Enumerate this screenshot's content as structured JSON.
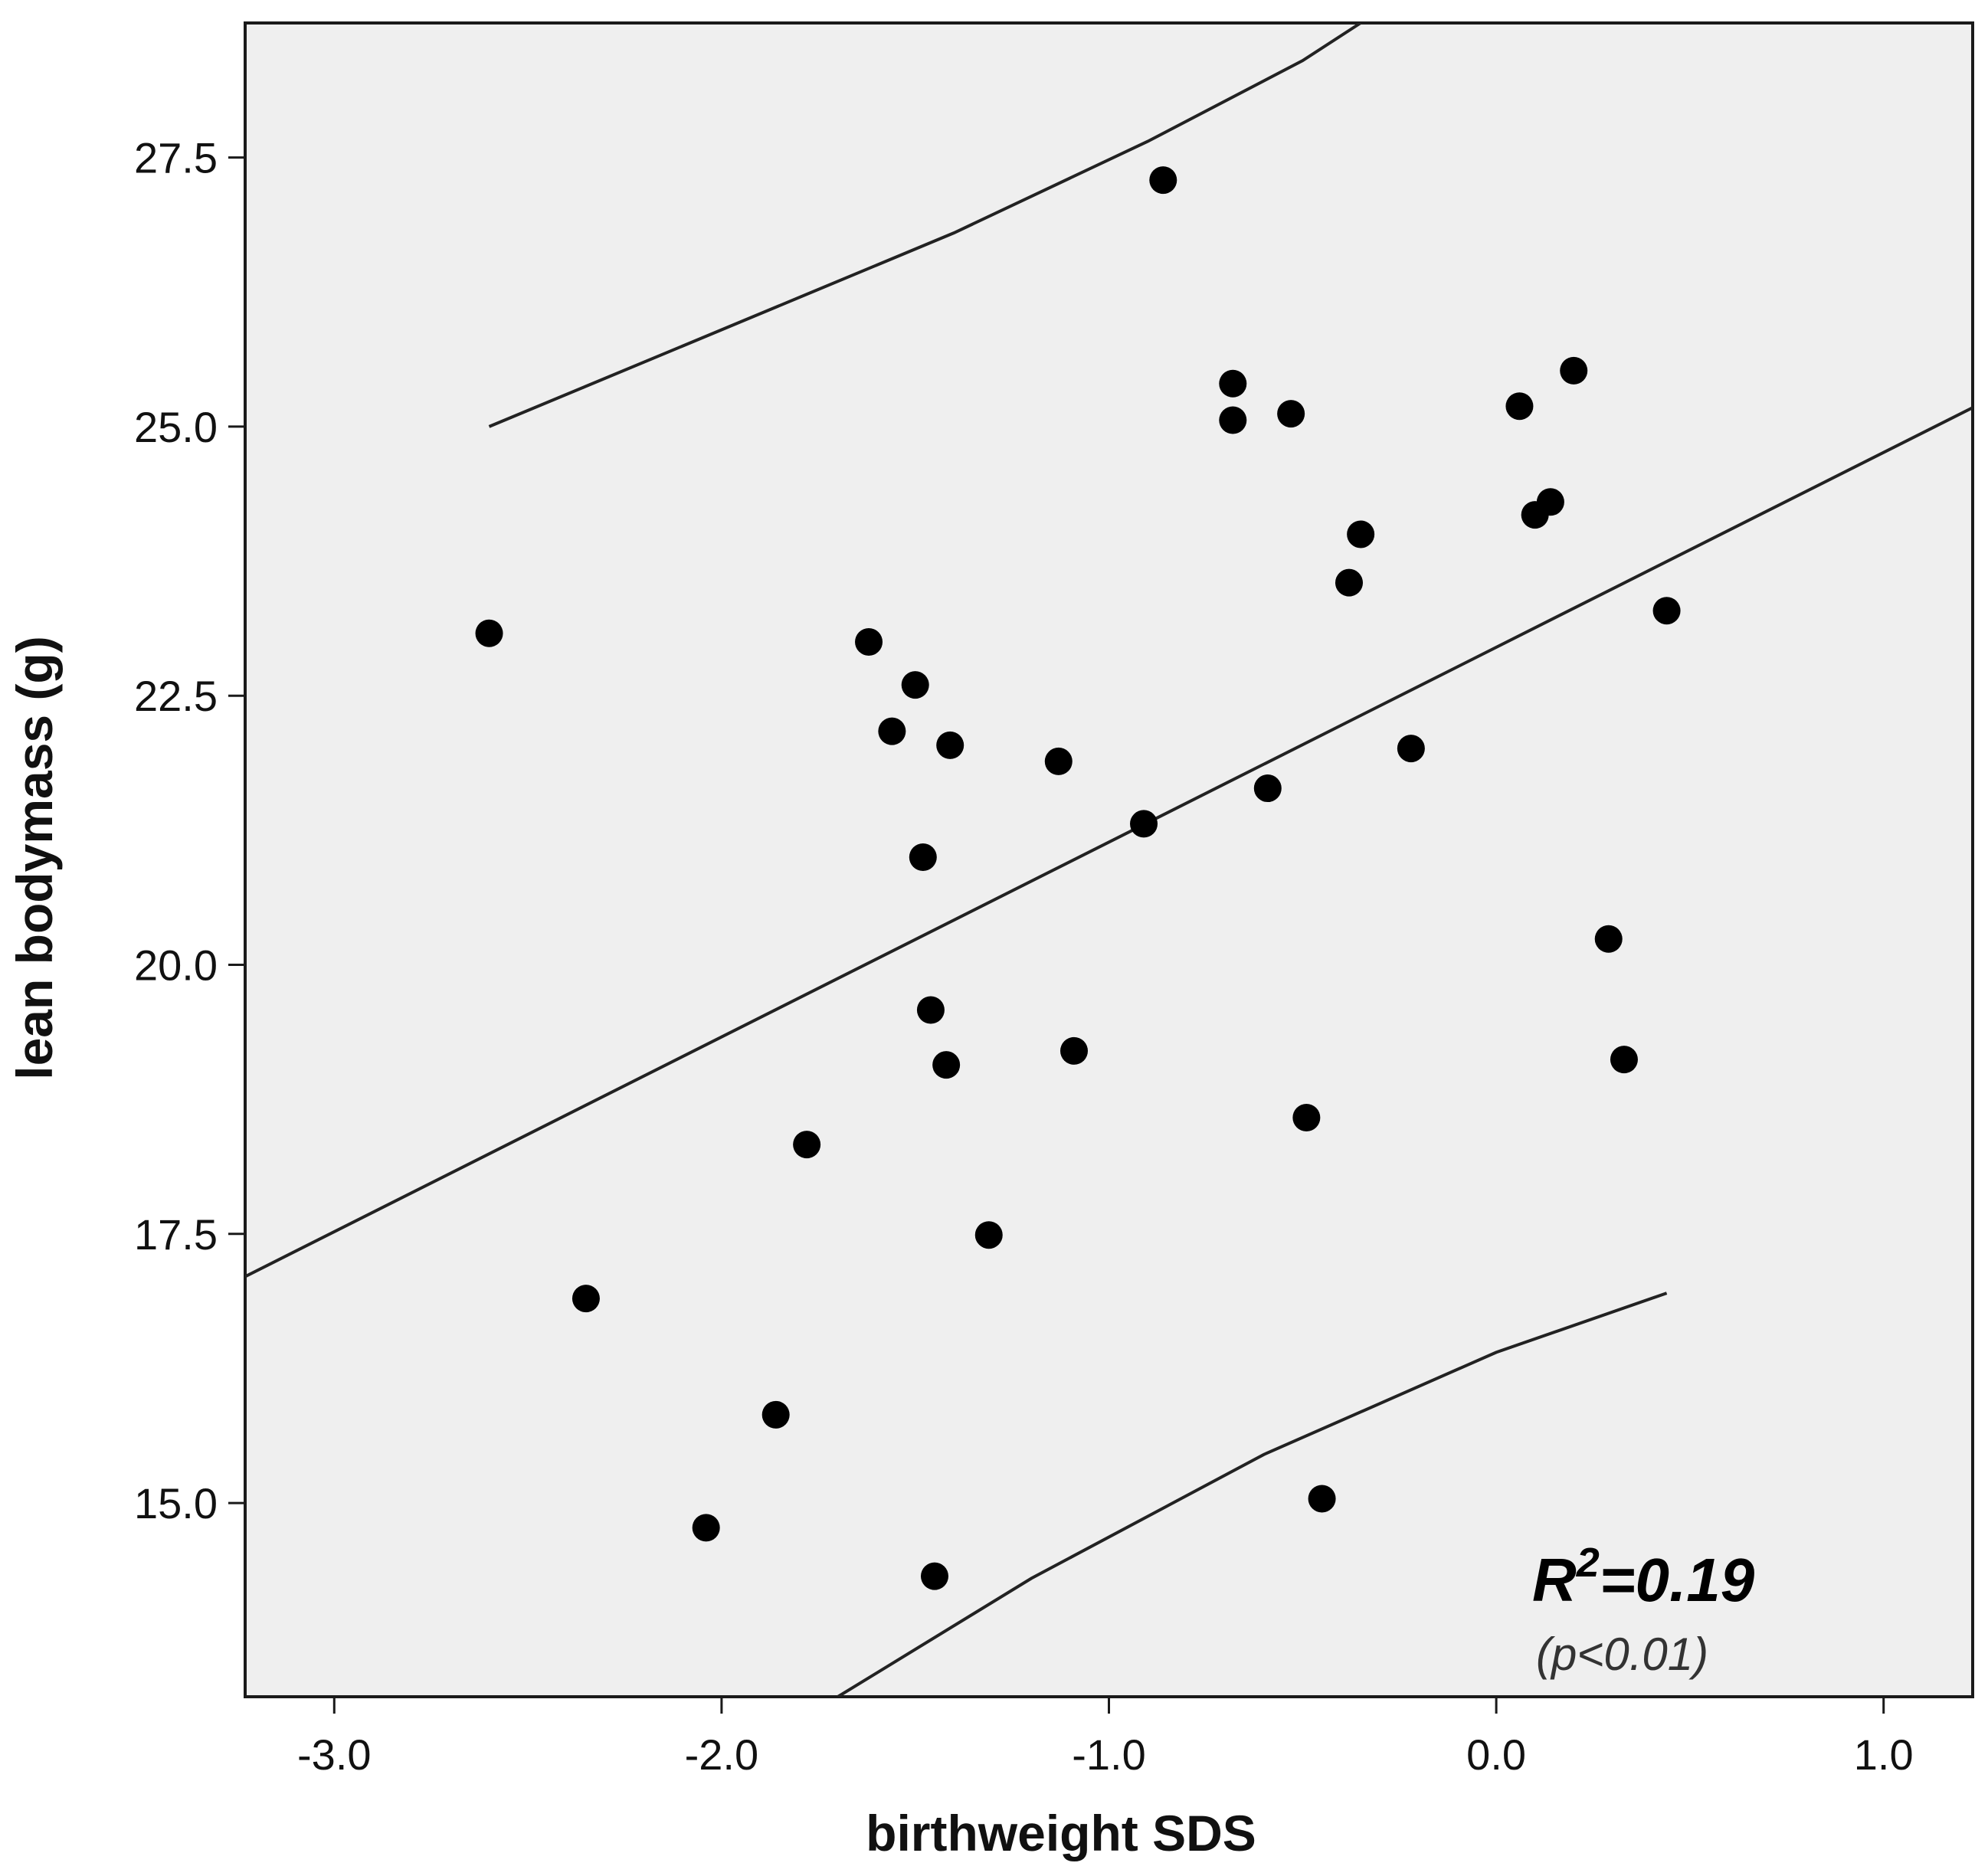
{
  "chart_data": {
    "type": "scatter",
    "title": "",
    "xlabel": "birthweight SDS",
    "ylabel": "lean bodymass (g)",
    "xlim": [
      -3.23,
      1.23
    ],
    "ylim": [
      13.2,
      28.75
    ],
    "x_ticks": [
      -3.0,
      -2.0,
      -1.0,
      0.0,
      1.0
    ],
    "x_tick_labels": [
      "-3.0",
      "-2.0",
      "-1.0",
      "0.0",
      "1.0"
    ],
    "y_ticks": [
      15.0,
      17.5,
      20.0,
      22.5,
      25.0,
      27.5
    ],
    "y_tick_labels": [
      "15.0",
      "17.5",
      "20.0",
      "22.5",
      "25.0",
      "27.5"
    ],
    "grid": false,
    "points": [
      {
        "x": -2.6,
        "y": 23.08
      },
      {
        "x": -2.35,
        "y": 16.9
      },
      {
        "x": -2.04,
        "y": 14.77
      },
      {
        "x": -1.86,
        "y": 15.82
      },
      {
        "x": -1.78,
        "y": 18.33
      },
      {
        "x": -1.62,
        "y": 23.0
      },
      {
        "x": -1.56,
        "y": 22.17
      },
      {
        "x": -1.5,
        "y": 22.6
      },
      {
        "x": -1.48,
        "y": 21.0
      },
      {
        "x": -1.46,
        "y": 19.58
      },
      {
        "x": -1.45,
        "y": 14.32
      },
      {
        "x": -1.42,
        "y": 19.07
      },
      {
        "x": -1.41,
        "y": 22.04
      },
      {
        "x": -1.31,
        "y": 17.49
      },
      {
        "x": -1.13,
        "y": 21.89
      },
      {
        "x": -1.09,
        "y": 19.2
      },
      {
        "x": -0.86,
        "y": 27.29
      },
      {
        "x": -0.91,
        "y": 21.31
      },
      {
        "x": -0.68,
        "y": 25.4
      },
      {
        "x": -0.68,
        "y": 25.06
      },
      {
        "x": -0.59,
        "y": 21.64
      },
      {
        "x": -0.53,
        "y": 25.12
      },
      {
        "x": -0.49,
        "y": 18.58
      },
      {
        "x": -0.45,
        "y": 15.04
      },
      {
        "x": -0.38,
        "y": 23.55
      },
      {
        "x": -0.35,
        "y": 24.0
      },
      {
        "x": -0.22,
        "y": 22.01
      },
      {
        "x": 0.06,
        "y": 25.19
      },
      {
        "x": 0.1,
        "y": 24.18
      },
      {
        "x": 0.14,
        "y": 24.3
      },
      {
        "x": 0.2,
        "y": 25.52
      },
      {
        "x": 0.29,
        "y": 20.24
      },
      {
        "x": 0.33,
        "y": 19.12
      },
      {
        "x": 0.44,
        "y": 23.29
      }
    ],
    "fit_line": {
      "slope": 1.81,
      "intercept": 22.95
    },
    "prediction_upper": [
      {
        "x": -2.6,
        "y": 25.0
      },
      {
        "x": -2.0,
        "y": 25.9
      },
      {
        "x": -1.4,
        "y": 26.8
      },
      {
        "x": -0.9,
        "y": 27.65
      },
      {
        "x": -0.5,
        "y": 28.4
      },
      {
        "x": -0.35,
        "y": 28.75
      }
    ],
    "prediction_lower": [
      {
        "x": -1.7,
        "y": 13.2
      },
      {
        "x": -1.2,
        "y": 14.3
      },
      {
        "x": -0.6,
        "y": 15.45
      },
      {
        "x": 0.0,
        "y": 16.4
      },
      {
        "x": 0.44,
        "y": 16.95
      }
    ],
    "annotation_r2": "R2=0.19",
    "annotation_r2_base": "R",
    "annotation_r2_sup": "2",
    "annotation_r2_value": "=0.19",
    "annotation_p": "(p<0.01)",
    "colors": {
      "plot_background": "#efefef",
      "points": "#000000",
      "lines": "#222222",
      "frame": "#1a1a1a"
    }
  }
}
